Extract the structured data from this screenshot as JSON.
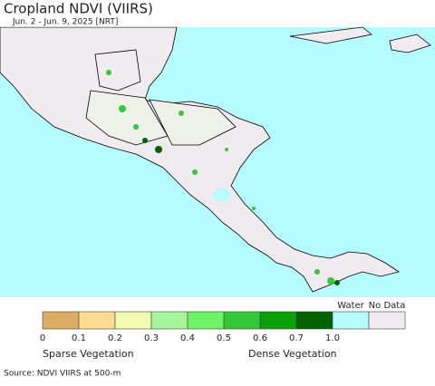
{
  "header": {
    "title": "Cropland NDVI (VIIRS)",
    "subtitle": "Jun. 2 - Jun. 9, 2025 [NRT]"
  },
  "legend": {
    "colors": [
      "#dcad63",
      "#fddc91",
      "#f1fbb1",
      "#a6f59a",
      "#6ef468",
      "#33c83a",
      "#0aa10b",
      "#006300",
      "#b5fbff",
      "#efebef"
    ],
    "ticks": [
      "0",
      "0.1",
      "0.2",
      "0.3",
      "0.4",
      "0.5",
      "0.6",
      "0.7",
      "1.0"
    ],
    "water_label": "Water",
    "nodata_label": "No Data",
    "sparse_label": "Sparse Vegetation",
    "dense_label": "Dense Vegetation"
  },
  "footer": {
    "source": "Source: NDVI VIIRS at 500-m"
  }
}
